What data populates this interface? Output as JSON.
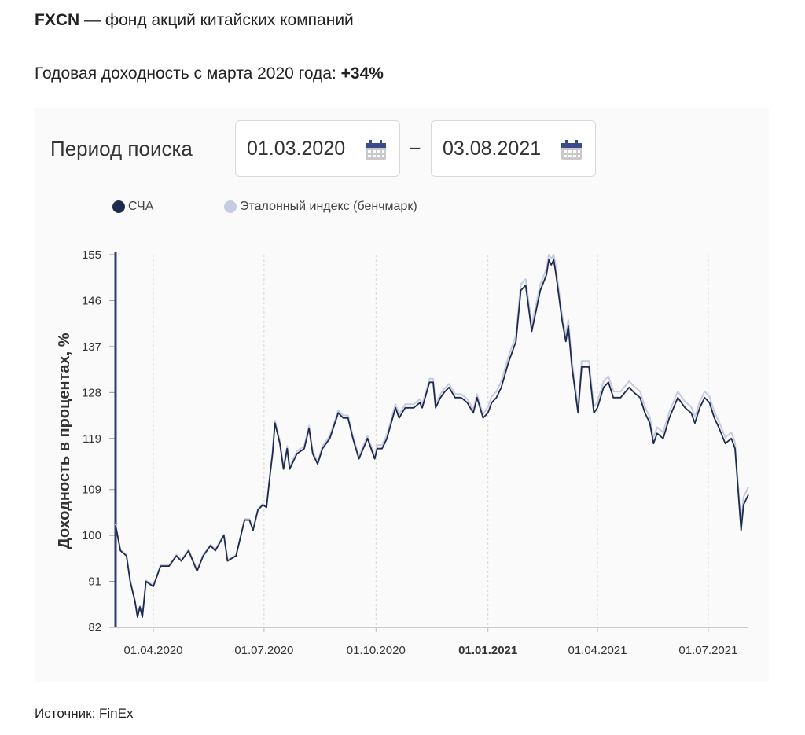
{
  "header": {
    "ticker": "FXCN",
    "title_rest": " — фонд акций китайских компаний",
    "subtitle_prefix": "Годовая доходность с марта 2020 года: ",
    "subtitle_value": "+34%"
  },
  "period": {
    "label": "Период поиска",
    "from": "01.03.2020",
    "to": "03.08.2021",
    "separator": "–"
  },
  "source": "Источник: FinEx",
  "colors": {
    "nav": "#1f2a4f",
    "benchmark": "#c5cbe0",
    "axis": "#2f3d6b"
  },
  "chart_data": {
    "type": "line",
    "ylabel": "Доходность в процентах, %",
    "xlabel": "",
    "ylim": [
      82,
      155
    ],
    "yticks": [
      "155",
      "146",
      "137",
      "128",
      "119",
      "109",
      "100",
      "91",
      "82"
    ],
    "xlim": [
      "2020-03-01",
      "2021-08-03"
    ],
    "xticks": [
      {
        "date": "2020-04-01",
        "label": "01.04.2020",
        "bold": false
      },
      {
        "date": "2020-07-01",
        "label": "01.07.2020",
        "bold": false
      },
      {
        "date": "2020-10-01",
        "label": "01.10.2020",
        "bold": false
      },
      {
        "date": "2021-01-01",
        "label": "01.01.2021",
        "bold": true
      },
      {
        "date": "2021-04-01",
        "label": "01.04.2021",
        "bold": false
      },
      {
        "date": "2021-07-01",
        "label": "01.07.2021",
        "bold": false
      }
    ],
    "grid": "vertical-dashed",
    "legend": {
      "placement": "top-left",
      "entries": [
        "СЧА",
        "Эталонный индекс (бенчмарк)"
      ]
    },
    "x": [
      "2020-03-01",
      "2020-03-05",
      "2020-03-10",
      "2020-03-13",
      "2020-03-17",
      "2020-03-19",
      "2020-03-21",
      "2020-03-23",
      "2020-03-26",
      "2020-04-01",
      "2020-04-07",
      "2020-04-14",
      "2020-04-20",
      "2020-04-24",
      "2020-04-30",
      "2020-05-07",
      "2020-05-12",
      "2020-05-18",
      "2020-05-22",
      "2020-05-29",
      "2020-06-01",
      "2020-06-08",
      "2020-06-15",
      "2020-06-19",
      "2020-06-22",
      "2020-06-26",
      "2020-06-30",
      "2020-07-03",
      "2020-07-06",
      "2020-07-08",
      "2020-07-10",
      "2020-07-14",
      "2020-07-17",
      "2020-07-20",
      "2020-07-22",
      "2020-07-28",
      "2020-08-03",
      "2020-08-07",
      "2020-08-10",
      "2020-08-14",
      "2020-08-18",
      "2020-08-24",
      "2020-08-31",
      "2020-09-04",
      "2020-09-08",
      "2020-09-12",
      "2020-09-17",
      "2020-09-24",
      "2020-09-30",
      "2020-10-02",
      "2020-10-06",
      "2020-10-10",
      "2020-10-17",
      "2020-10-20",
      "2020-10-25",
      "2020-11-01",
      "2020-11-06",
      "2020-11-08",
      "2020-11-14",
      "2020-11-17",
      "2020-11-19",
      "2020-11-23",
      "2020-11-26",
      "2020-11-30",
      "2020-12-05",
      "2020-12-10",
      "2020-12-15",
      "2020-12-20",
      "2020-12-23",
      "2020-12-28",
      "2021-01-01",
      "2021-01-04",
      "2021-01-08",
      "2021-01-12",
      "2021-01-18",
      "2021-01-24",
      "2021-01-28",
      "2021-02-01",
      "2021-02-06",
      "2021-02-13",
      "2021-02-18",
      "2021-02-20",
      "2021-02-22",
      "2021-02-24",
      "2021-02-26",
      "2021-03-03",
      "2021-03-06",
      "2021-03-08",
      "2021-03-11",
      "2021-03-16",
      "2021-03-19",
      "2021-03-25",
      "2021-03-29",
      "2021-04-01",
      "2021-04-06",
      "2021-04-10",
      "2021-04-14",
      "2021-04-20",
      "2021-04-27",
      "2021-05-01",
      "2021-05-06",
      "2021-05-10",
      "2021-05-14",
      "2021-05-17",
      "2021-05-20",
      "2021-05-25",
      "2021-05-30",
      "2021-06-06",
      "2021-06-12",
      "2021-06-17",
      "2021-06-20",
      "2021-06-24",
      "2021-06-28",
      "2021-07-02",
      "2021-07-06",
      "2021-07-10",
      "2021-07-15",
      "2021-07-20",
      "2021-07-23",
      "2021-07-28",
      "2021-07-30",
      "2021-08-03"
    ],
    "series": [
      {
        "name": "СЧА",
        "values": [
          102,
          97,
          96,
          91,
          87,
          84,
          86,
          84,
          91,
          90,
          94,
          94,
          96,
          95,
          97,
          93,
          96,
          98,
          97,
          100,
          95,
          96,
          103,
          103,
          101,
          105,
          106,
          105.5,
          112,
          116,
          122,
          118,
          113,
          117,
          113,
          116,
          117,
          121,
          116,
          114,
          117,
          119,
          124,
          123,
          123,
          119,
          115,
          119,
          115,
          117,
          117,
          119,
          125,
          123,
          125,
          125,
          126,
          125,
          130,
          130,
          125,
          127,
          128,
          129,
          127,
          127,
          126,
          124,
          127,
          123,
          124,
          126,
          127,
          129,
          134,
          138,
          148,
          149,
          140,
          148,
          151,
          154,
          153,
          154,
          151,
          142,
          138,
          141,
          133,
          124,
          133,
          133,
          124,
          125,
          129,
          130,
          127,
          127,
          129,
          128,
          127,
          124,
          122,
          118,
          120,
          119,
          123,
          127,
          125,
          124,
          122,
          125,
          127,
          126,
          123,
          121,
          118,
          119,
          117,
          101,
          106,
          108
        ]
      },
      {
        "name": "Эталонный индекс (бенчмарк)",
        "values": [
          102.2,
          97.2,
          96.2,
          91.2,
          87.2,
          84.2,
          86.2,
          84.2,
          91.2,
          90.2,
          94.2,
          94.2,
          96.2,
          95.2,
          97.2,
          93.2,
          96.2,
          98.2,
          97.2,
          100.2,
          95.2,
          96.2,
          103.2,
          103.2,
          101.2,
          105.2,
          106.2,
          105.7,
          112.2,
          116.5,
          122.5,
          118.5,
          113.5,
          117.5,
          113.5,
          116.5,
          117.5,
          121.5,
          116.5,
          114.5,
          117.5,
          119.5,
          124.5,
          123.5,
          123.5,
          119.5,
          115.5,
          119.5,
          115.5,
          117.7,
          117.7,
          119.7,
          125.7,
          123.7,
          125.7,
          125.7,
          126.7,
          125.7,
          130.7,
          130.7,
          125.7,
          127.7,
          128.7,
          129.7,
          127.7,
          127.7,
          126.7,
          124.7,
          127.7,
          123.7,
          125.2,
          127.2,
          128.2,
          130.2,
          135.2,
          139.2,
          149.2,
          150.2,
          141.2,
          149.2,
          152.2,
          155,
          154.2,
          155,
          152.2,
          143.2,
          139.2,
          142.2,
          134.2,
          125.2,
          134.2,
          134.2,
          125.2,
          126.2,
          130.2,
          131.2,
          128.2,
          128.2,
          130.2,
          129.2,
          128.2,
          125.2,
          123.2,
          119.2,
          121.2,
          120.2,
          124.2,
          128.2,
          126.2,
          125.2,
          123.2,
          126.2,
          128.2,
          127.2,
          124.2,
          122.2,
          119.2,
          120.2,
          118.2,
          102,
          107.5,
          109.5
        ]
      }
    ]
  }
}
